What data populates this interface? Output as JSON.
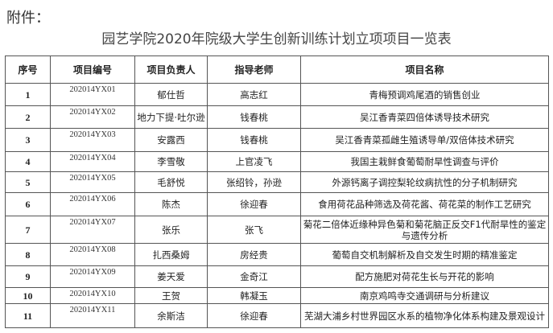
{
  "attachment_label": "附件：",
  "title": "园艺学院2020年院级大学生创新训练计划立项项目一览表",
  "headers": [
    "序号",
    "项目编号",
    "项目负责人",
    "指导老师",
    "项目名称"
  ],
  "rows": [
    {
      "no": "1",
      "code": "202014YX01",
      "leader": "郁仕哲",
      "advisor": "高志红",
      "name": "青梅预调鸡尾酒的销售创业"
    },
    {
      "no": "2",
      "code": "202014YX02",
      "leader": "地力下提·吐尔逊",
      "advisor": "钱春桃",
      "name": "吴江香青菜四倍体诱导技术研究"
    },
    {
      "no": "3",
      "code": "202014YX03",
      "leader": "安露西",
      "advisor": "钱春桃",
      "name": "吴江香青菜孤雌生殖诱导单/双倍体技术研究"
    },
    {
      "no": "4",
      "code": "202014YX04",
      "leader": "李雪敬",
      "advisor": "上官凌飞",
      "name": "我国主栽鲜食葡萄耐旱性调查与评价"
    },
    {
      "no": "5",
      "code": "202014YX05",
      "leader": "毛舒悦",
      "advisor": "张绍铃，孙逊",
      "name": "外源钙离子调控梨轮纹病抗性的分子机制研究"
    },
    {
      "no": "6",
      "code": "202014YX06",
      "leader": "陈杰",
      "advisor": "徐迎春",
      "name": "食用荷花品种筛选及荷花酱、荷花菜的制作工艺研究"
    },
    {
      "no": "7",
      "code": "202014YX07",
      "leader": "张乐",
      "advisor": "张飞",
      "name": "菊花二倍体近缘种异色菊和菊花脑正反交F1代耐旱性的鉴定与遗传分析"
    },
    {
      "no": "8",
      "code": "202014YX08",
      "leader": "扎西桑姆",
      "advisor": "房经贵",
      "name": "葡萄自交机制解析及自交发生时期的精准鉴定"
    },
    {
      "no": "9",
      "code": "202014YX09",
      "leader": "姜天爱",
      "advisor": "金奇江",
      "name": "配方施肥对荷花生长与开花的影响"
    },
    {
      "no": "10",
      "code": "202014YX10",
      "leader": "王贺",
      "advisor": "韩凝玉",
      "name": "南京鸡鸣寺交通调研与分析建议"
    },
    {
      "no": "11",
      "code": "202014YX11",
      "leader": "余斯洁",
      "advisor": "徐迎春",
      "name": "芜湖大浦乡村世界园区水系的植物净化体系构建及景观设计"
    }
  ]
}
